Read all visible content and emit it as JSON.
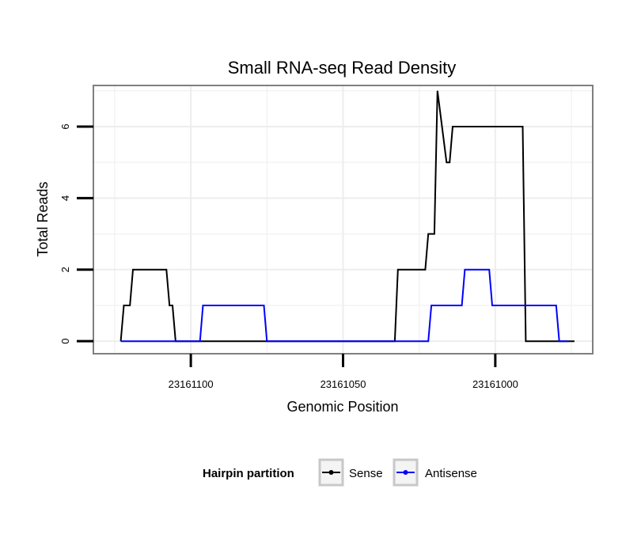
{
  "chart_data": {
    "type": "line",
    "title": "Small RNA-seq Read Density",
    "xlabel": "Genomic Position",
    "ylabel": "Total Reads",
    "x_reversed": true,
    "xlim": [
      23161132,
      23160968
    ],
    "ylim": [
      -0.35,
      7.15
    ],
    "x_ticks": [
      23161100,
      23161050,
      23161000
    ],
    "x_tick_labels": [
      "23161100",
      "23161050",
      "23161000"
    ],
    "y_ticks": [
      0,
      2,
      4,
      6
    ],
    "y_tick_labels": [
      "0",
      "2",
      "4",
      "6"
    ],
    "x_minor_gridlines": [
      23161125,
      23161075,
      23161025,
      23160975
    ],
    "y_minor_gridlines": [
      1,
      3,
      5,
      7
    ],
    "grid": true,
    "legend": {
      "title": "Hairpin partition",
      "position": "bottom"
    },
    "series": [
      {
        "name": "Sense",
        "color": "#000000",
        "x": [
          23161123,
          23161122,
          23161121,
          23161120,
          23161119,
          23161118,
          23161108,
          23161107,
          23161106,
          23161105,
          23161083,
          23161082,
          23161053,
          23161052,
          23161033,
          23161032,
          23161023,
          23161022,
          23161020,
          23161019,
          23161016,
          23161015,
          23161014,
          23161013,
          23161012,
          23160991,
          23160990,
          23160986,
          23160975,
          23160974
        ],
        "values": [
          0,
          1,
          1,
          1,
          2,
          2,
          2,
          1,
          1,
          0,
          0,
          0,
          0,
          0,
          0,
          2,
          2,
          3,
          3,
          7,
          5,
          5,
          6,
          6,
          6,
          6,
          0,
          0,
          0,
          0
        ]
      },
      {
        "name": "Antisense",
        "color": "#0000ff",
        "x": [
          23161123,
          23161097,
          23161096,
          23161076,
          23161075,
          23161034,
          23161033,
          23161022,
          23161021,
          23161011,
          23161010,
          23161002,
          23161001,
          23160993,
          23160992,
          23160980,
          23160979,
          23160976
        ],
        "values": [
          0,
          0,
          1,
          1,
          0,
          0,
          0,
          0,
          1,
          1,
          2,
          2,
          1,
          1,
          1,
          1,
          0,
          0
        ]
      }
    ]
  }
}
